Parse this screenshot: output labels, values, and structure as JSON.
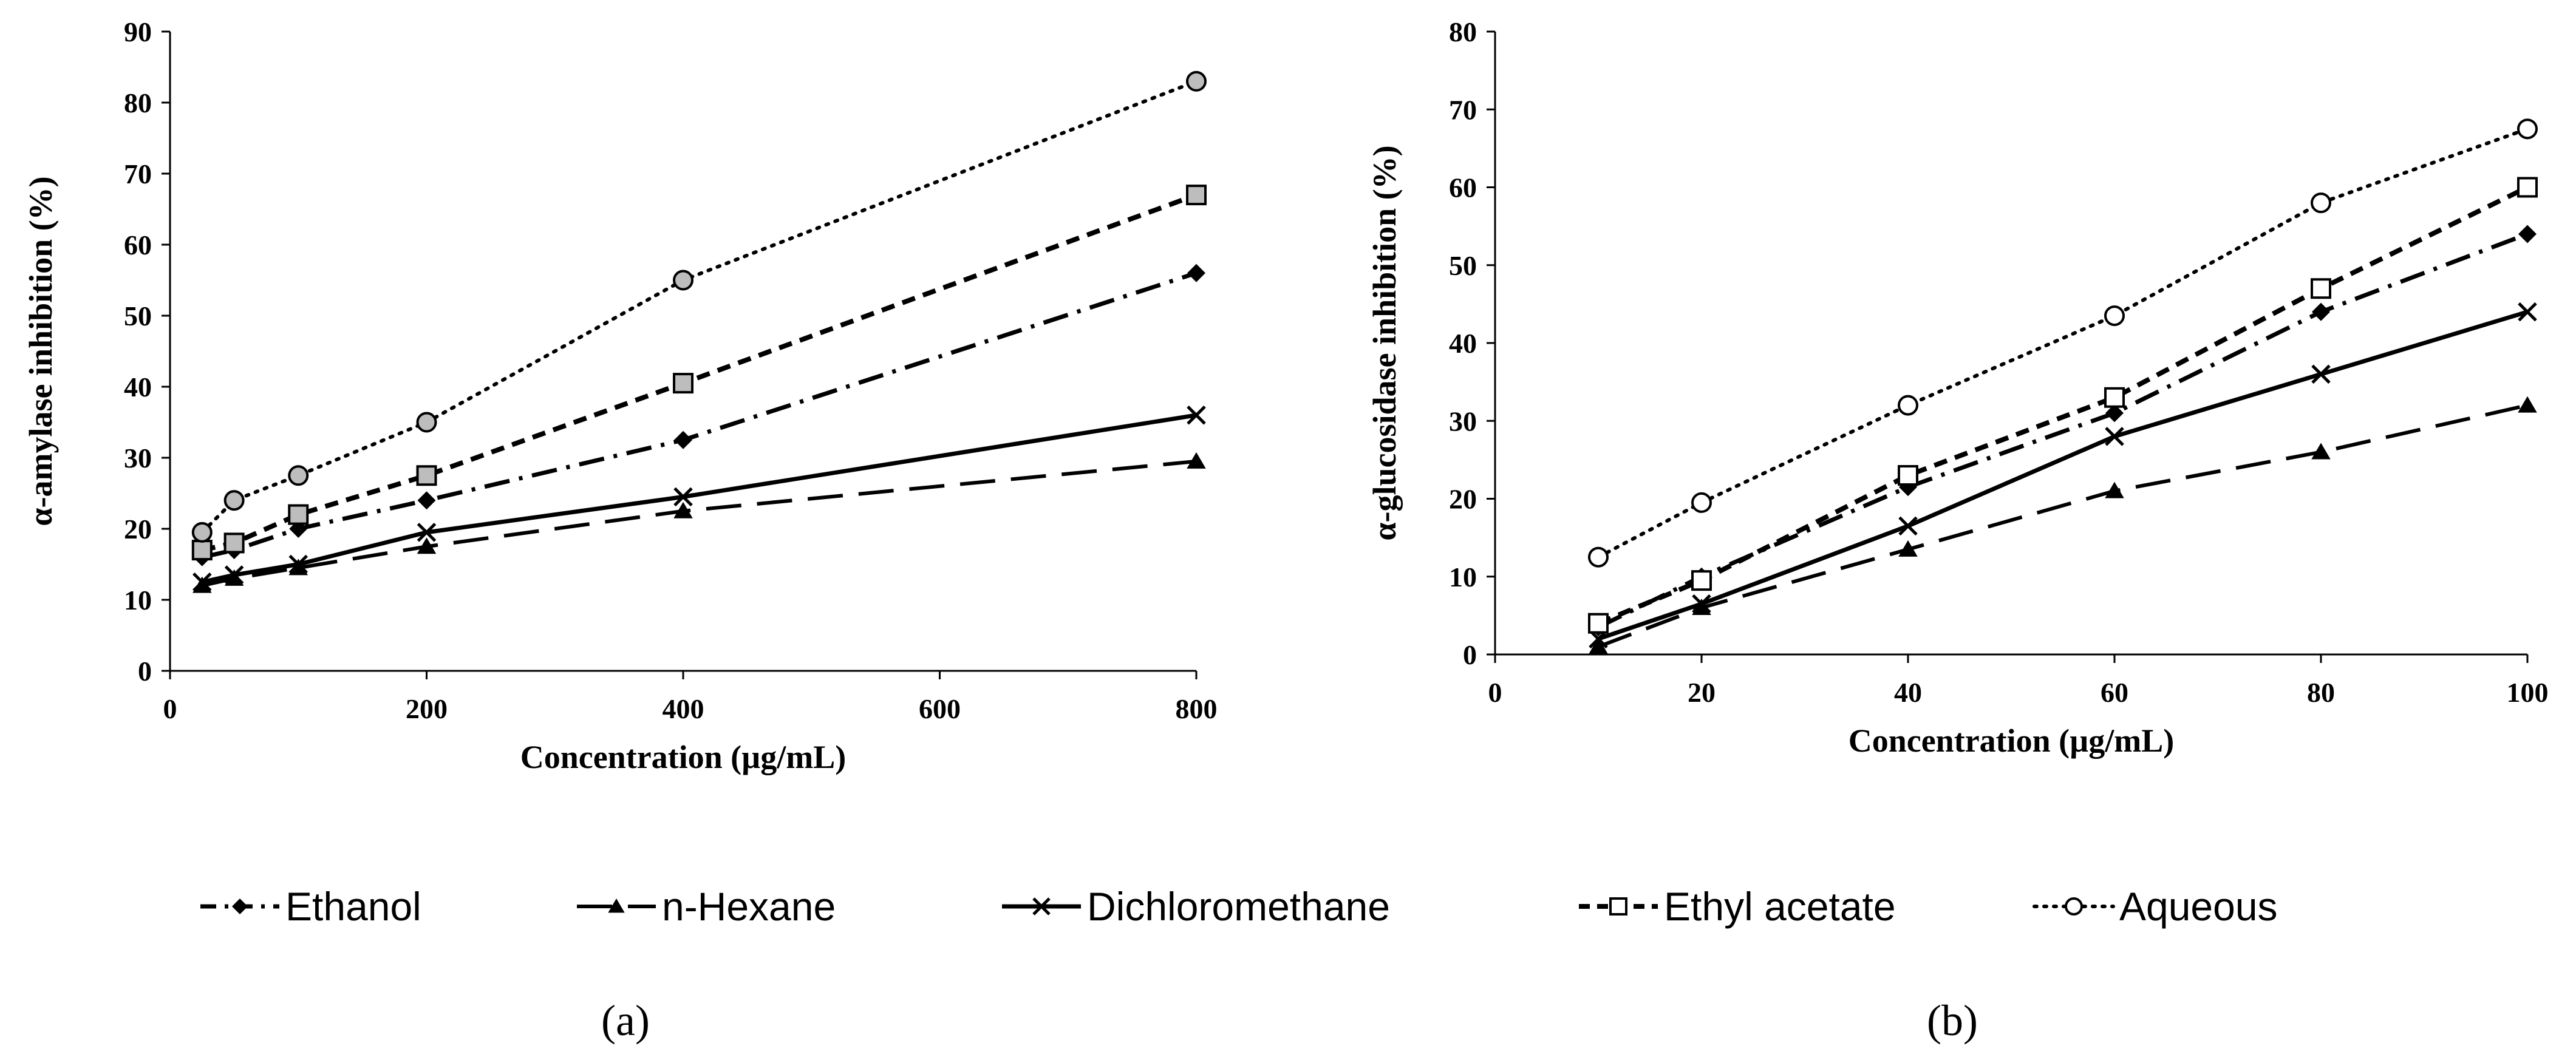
{
  "chart_data": [
    {
      "type": "line",
      "panel_label": "(a)",
      "xlabel": "Concentration (µg/mL)",
      "ylabel": "α-amylase inhibition (%)",
      "xlim": [
        0,
        800
      ],
      "ylim": [
        0,
        90
      ],
      "xticks": [
        0,
        200,
        400,
        600,
        800
      ],
      "yticks": [
        0,
        10,
        20,
        30,
        40,
        50,
        60,
        70,
        80,
        90
      ],
      "x": [
        25,
        50,
        100,
        200,
        400,
        800
      ],
      "series": [
        {
          "name": "Ethanol",
          "values": [
            16,
            17,
            20,
            24,
            32.5,
            56
          ]
        },
        {
          "name": "n-Hexane",
          "values": [
            12,
            13,
            14.5,
            17.5,
            22.5,
            29.5
          ]
        },
        {
          "name": "Dichloromethane",
          "values": [
            12.5,
            13.5,
            15,
            19.5,
            24.5,
            36
          ]
        },
        {
          "name": "Ethyl acetate",
          "values": [
            17,
            18,
            22,
            27.5,
            40.5,
            67
          ]
        },
        {
          "name": "Aqueous",
          "values": [
            19.5,
            24,
            27.5,
            35,
            55,
            83
          ]
        }
      ]
    },
    {
      "type": "line",
      "panel_label": "(b)",
      "xlabel": "Concentration (µg/mL)",
      "ylabel": "α-glucosidase inhibition (%)",
      "xlim": [
        0,
        100
      ],
      "ylim": [
        0,
        80
      ],
      "xticks": [
        0,
        20,
        40,
        60,
        80,
        100
      ],
      "yticks": [
        0,
        10,
        20,
        30,
        40,
        50,
        60,
        70,
        80
      ],
      "x": [
        10,
        20,
        40,
        60,
        80,
        100
      ],
      "series": [
        {
          "name": "Ethanol",
          "values": [
            3.5,
            10,
            21.5,
            31,
            44,
            54
          ]
        },
        {
          "name": "n-Hexane",
          "values": [
            1,
            6,
            13.5,
            21,
            26,
            32
          ]
        },
        {
          "name": "Dichloromethane",
          "values": [
            2,
            6.5,
            16.5,
            28,
            36,
            44
          ]
        },
        {
          "name": "Ethyl acetate",
          "values": [
            4,
            9.5,
            23,
            33,
            47,
            60
          ]
        },
        {
          "name": "Aqueous",
          "values": [
            12.5,
            19.5,
            32,
            43.5,
            58,
            67.5
          ]
        }
      ]
    }
  ],
  "legend": [
    "Ethanol",
    "n-Hexane",
    "Dichloromethane",
    "Ethyl acetate",
    "Aqueous"
  ],
  "colors": {
    "line": "#000000",
    "aqueous_marker_fill": "#bdbdbd",
    "background": "#ffffff"
  }
}
